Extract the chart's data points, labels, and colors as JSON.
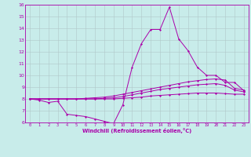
{
  "xlabel": "Windchill (Refroidissement éolien,°C)",
  "background_color": "#c8ecea",
  "line_color": "#aa00aa",
  "grid_color": "#b0c8c8",
  "x": [
    0,
    1,
    2,
    3,
    4,
    5,
    6,
    7,
    8,
    9,
    10,
    11,
    12,
    13,
    14,
    15,
    16,
    17,
    18,
    19,
    20,
    21,
    22,
    23
  ],
  "line1": [
    8.0,
    7.9,
    7.7,
    7.8,
    6.7,
    6.6,
    6.5,
    6.3,
    6.1,
    5.9,
    7.5,
    10.7,
    12.7,
    13.9,
    13.9,
    15.8,
    13.1,
    12.1,
    10.7,
    10.0,
    10.0,
    9.4,
    9.4,
    8.7
  ],
  "line2": [
    8.0,
    8.0,
    8.0,
    8.0,
    8.0,
    8.0,
    8.05,
    8.1,
    8.15,
    8.25,
    8.4,
    8.55,
    8.7,
    8.85,
    9.0,
    9.15,
    9.3,
    9.45,
    9.55,
    9.65,
    9.7,
    9.6,
    8.9,
    8.75
  ],
  "line3": [
    8.0,
    8.0,
    8.0,
    8.0,
    8.0,
    8.0,
    8.0,
    8.0,
    8.05,
    8.1,
    8.2,
    8.35,
    8.5,
    8.65,
    8.8,
    8.9,
    9.0,
    9.1,
    9.2,
    9.25,
    9.3,
    9.15,
    8.75,
    8.6
  ],
  "line4": [
    8.0,
    8.0,
    8.0,
    8.0,
    8.0,
    8.0,
    8.0,
    8.0,
    8.0,
    8.0,
    8.05,
    8.1,
    8.15,
    8.25,
    8.3,
    8.35,
    8.4,
    8.45,
    8.5,
    8.5,
    8.5,
    8.45,
    8.4,
    8.4
  ],
  "ylim": [
    6,
    16
  ],
  "xlim": [
    -0.5,
    23.5
  ],
  "yticks": [
    6,
    7,
    8,
    9,
    10,
    11,
    12,
    13,
    14,
    15,
    16
  ],
  "xticks": [
    0,
    1,
    2,
    3,
    4,
    5,
    6,
    7,
    8,
    9,
    10,
    11,
    12,
    13,
    14,
    15,
    16,
    17,
    18,
    19,
    20,
    21,
    22,
    23
  ]
}
